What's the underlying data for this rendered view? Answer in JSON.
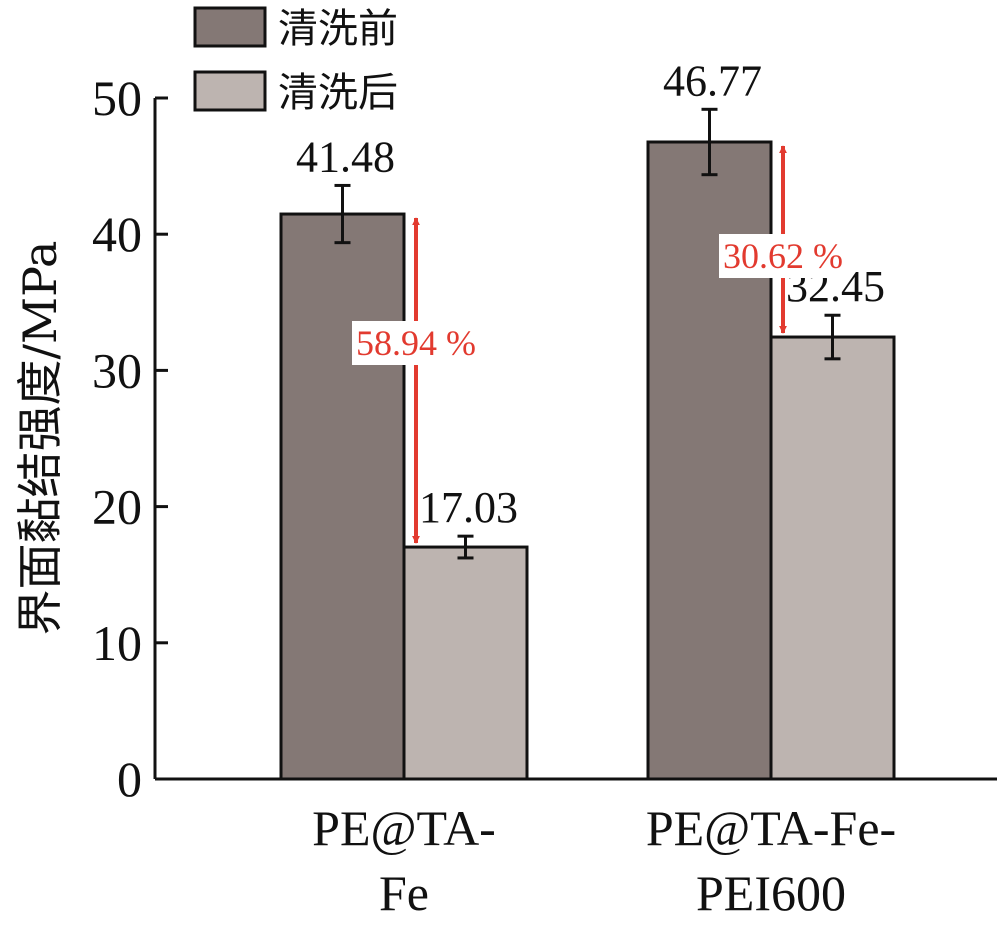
{
  "chart_data": {
    "type": "bar",
    "ylabel": "界面黏结强度/MPa",
    "xlabel": "",
    "ylim": [
      0,
      50
    ],
    "yticks": [
      0,
      10,
      20,
      30,
      40,
      50
    ],
    "categories": [
      [
        "PE@TA-",
        "Fe"
      ],
      [
        "PE@TA-Fe-",
        "PEI600"
      ]
    ],
    "series": [
      {
        "name": "清洗前",
        "values": [
          41.48,
          46.77
        ],
        "errors": [
          2.1,
          2.4
        ],
        "labels": [
          "41.48",
          "46.77"
        ],
        "color": "#847875"
      },
      {
        "name": "清洗后",
        "values": [
          17.03,
          32.45
        ],
        "errors": [
          0.8,
          1.6
        ],
        "labels": [
          "17.03",
          "32.45"
        ],
        "color": "#bdb4b0"
      }
    ],
    "annotations": [
      {
        "text": "58.94 %",
        "category": 0,
        "from": 41.48,
        "to": 17.03
      },
      {
        "text": "30.62 %",
        "category": 1,
        "from": 46.77,
        "to": 32.45
      }
    ],
    "legend_position": "top-left",
    "grid": false,
    "annotation_color": "#e23a2f"
  }
}
